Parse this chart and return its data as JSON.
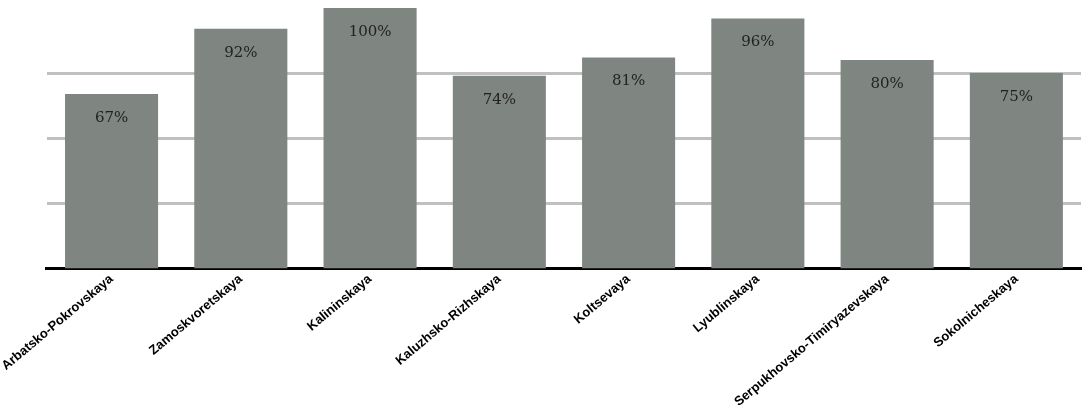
{
  "chart_data": {
    "type": "bar",
    "categories": [
      "Arbatsko-Pokrovskaya",
      "Zamoskvoretskaya",
      "Kalininskaya",
      "Kaluzhsko-Rizhskaya",
      "Koltsevaya",
      "Lyublinskaya",
      "Serpukhovsko-Timiryazevskaya",
      "Sokolnicheskaya"
    ],
    "values": [
      67,
      92,
      100,
      74,
      81,
      96,
      80,
      75
    ],
    "value_labels": [
      "67%",
      "92%",
      "100%",
      "74%",
      "81%",
      "96%",
      "80%",
      "75%"
    ],
    "color": "#7f8581",
    "ylim": [
      0,
      100
    ],
    "yticks": [
      {
        "value": 25,
        "label": null
      },
      {
        "value": 50,
        "label": null
      },
      {
        "value": 75,
        "label": null
      }
    ],
    "grid": "y",
    "tick_labels": "x"
  }
}
